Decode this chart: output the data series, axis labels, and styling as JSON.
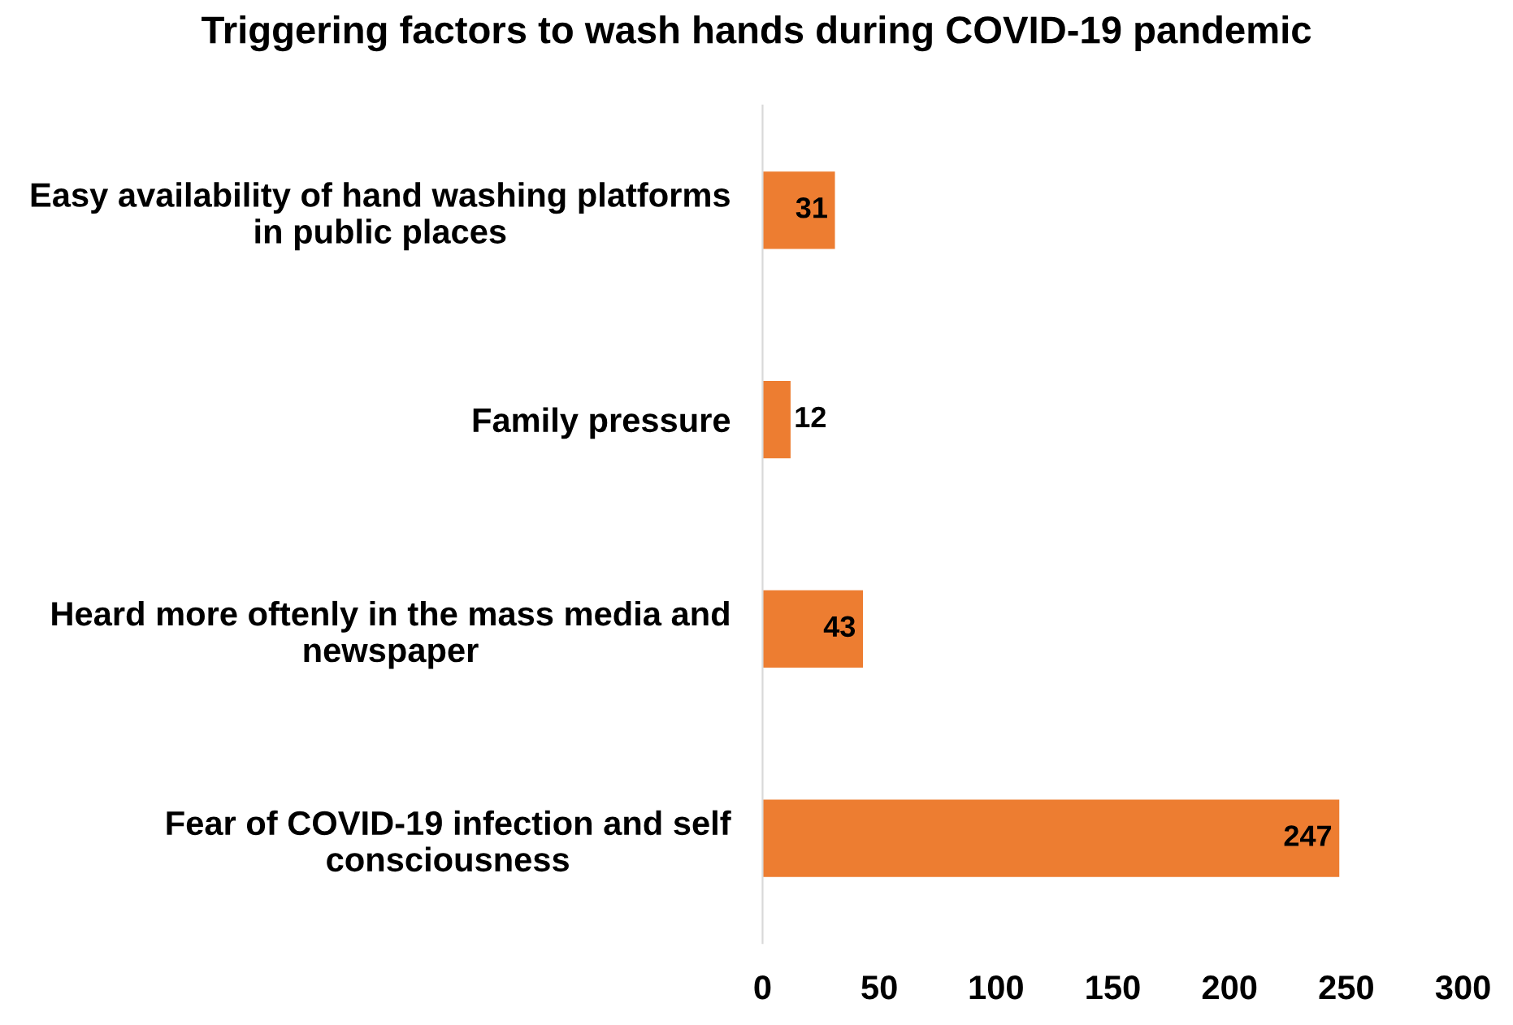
{
  "chart_data": {
    "type": "bar",
    "orientation": "horizontal",
    "title": "Triggering factors to wash hands during COVID-19 pandemic",
    "categories": [
      "Easy availability of hand washing platforms\nin public places",
      "Family pressure",
      "Heard more oftenly in the mass media and\nnewspaper",
      "Fear of COVID-19 infection and self\nconsciousness"
    ],
    "values": [
      31,
      12,
      43,
      247
    ],
    "color": "#ed7d31",
    "xlim": [
      0,
      300
    ],
    "xticks": [
      0,
      50,
      100,
      150,
      200,
      250,
      300
    ],
    "grid": false,
    "data_labels": true,
    "legend": false
  }
}
